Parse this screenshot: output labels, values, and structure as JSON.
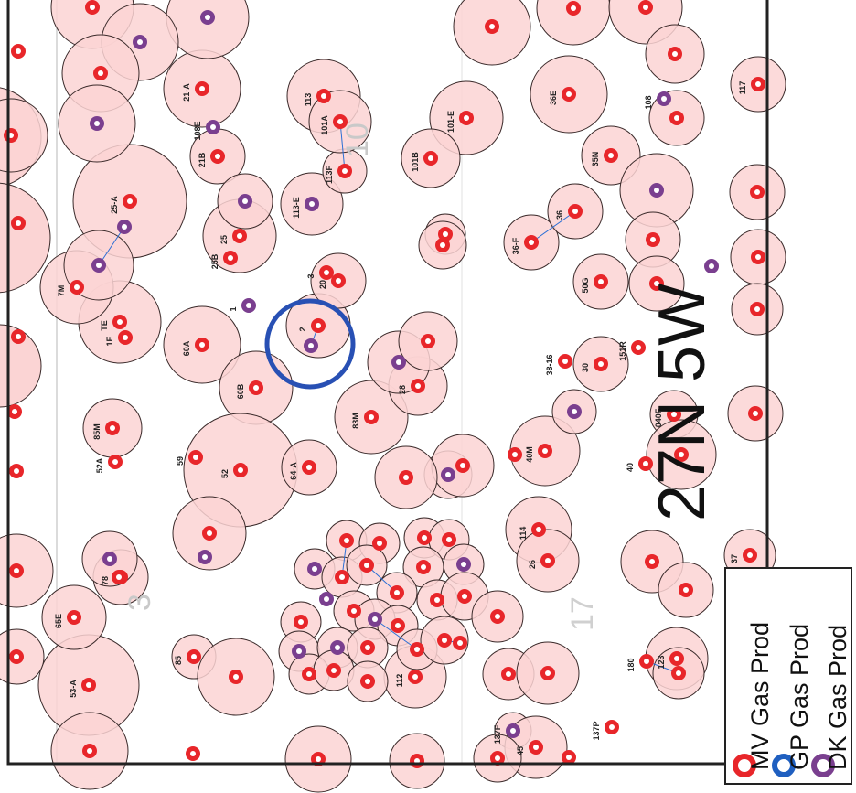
{
  "map": {
    "township_label": "27N 5W",
    "section_numbers": [
      "10",
      "3",
      "17"
    ],
    "wells": [
      {
        "label": "2",
        "type": "MV"
      },
      {
        "label": "1",
        "type": "DK"
      },
      {
        "label": "21-A",
        "type": "MV"
      },
      {
        "label": "25-A",
        "type": "MV"
      },
      {
        "label": "21B",
        "type": "MV"
      },
      {
        "label": "25",
        "type": "MV"
      },
      {
        "label": "25B",
        "type": "MV"
      },
      {
        "label": "60A",
        "type": "MV"
      },
      {
        "label": "60B",
        "type": "MV"
      },
      {
        "label": "52",
        "type": "MV"
      },
      {
        "label": "64-A",
        "type": "MV"
      },
      {
        "label": "113",
        "type": "MV"
      },
      {
        "label": "113-E",
        "type": "DK"
      },
      {
        "label": "113F",
        "type": "MV"
      },
      {
        "label": "101A",
        "type": "MV"
      },
      {
        "label": "101-E",
        "type": "MV"
      },
      {
        "label": "101B",
        "type": "MV"
      },
      {
        "label": "36-F",
        "type": "MV"
      },
      {
        "label": "36",
        "type": "MV"
      },
      {
        "label": "36E",
        "type": "MV"
      },
      {
        "label": "35N",
        "type": "MV"
      },
      {
        "label": "30",
        "type": "MV"
      },
      {
        "label": "38-16",
        "type": "MV"
      },
      {
        "label": "40M",
        "type": "MV"
      },
      {
        "label": "40",
        "type": "MV"
      },
      {
        "label": "040F",
        "type": "MV"
      },
      {
        "label": "151R",
        "type": "MV"
      },
      {
        "label": "83M",
        "type": "MV"
      },
      {
        "label": "85M",
        "type": "MV"
      },
      {
        "label": "52A",
        "type": "MV"
      },
      {
        "label": "53-A",
        "type": "MV"
      },
      {
        "label": "65E",
        "type": "MV"
      },
      {
        "label": "78",
        "type": "MV"
      },
      {
        "label": "85",
        "type": "MV"
      },
      {
        "label": "50G",
        "type": "MV"
      },
      {
        "label": "112",
        "type": "MV"
      },
      {
        "label": "114",
        "type": "MV"
      },
      {
        "label": "26",
        "type": "MV"
      },
      {
        "label": "37",
        "type": "MV"
      },
      {
        "label": "117",
        "type": "MV"
      },
      {
        "label": "123",
        "type": "MV"
      },
      {
        "label": "137F",
        "type": "DK"
      },
      {
        "label": "137P",
        "type": "MV"
      },
      {
        "label": "45",
        "type": "MV"
      },
      {
        "label": "180",
        "type": "MV"
      },
      {
        "label": "20",
        "type": "MV"
      },
      {
        "label": "28",
        "type": "MV"
      },
      {
        "label": "TE",
        "type": "MV"
      },
      {
        "label": "1E",
        "type": "MV"
      },
      {
        "label": "7M",
        "type": "MV"
      },
      {
        "label": "108",
        "type": "DK"
      },
      {
        "label": "108E",
        "type": "DK"
      },
      {
        "label": "3",
        "type": "MV"
      },
      {
        "label": "59",
        "type": "MV"
      }
    ],
    "highlight": {
      "color": "#2850b4"
    }
  },
  "legend": {
    "items": [
      {
        "label": "MV Gas Prod",
        "color": "#e8262a"
      },
      {
        "label": "GP Gas Prod",
        "color": "#1f5fc0"
      },
      {
        "label": "DK Gas Prod",
        "color": "#7a3f8f"
      }
    ]
  },
  "colors": {
    "circle_fill": "#fbd4d4",
    "circle_stroke": "#3a2a2a",
    "border": "#222222"
  }
}
